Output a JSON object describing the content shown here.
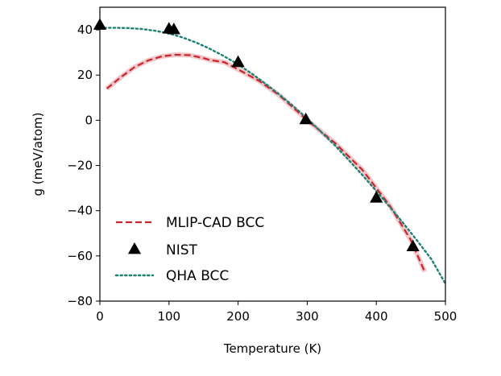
{
  "chart_data": {
    "type": "line",
    "xlabel": "Temperature (K)",
    "ylabel": "g (meV/atom)",
    "xlim": [
      0,
      500
    ],
    "ylim": [
      -80,
      50
    ],
    "xticks": [
      0,
      100,
      200,
      300,
      400,
      500
    ],
    "yticks": [
      -80,
      -60,
      -40,
      -20,
      0,
      20,
      40
    ],
    "xtick_labels": [
      "0",
      "100",
      "200",
      "300",
      "400",
      "500"
    ],
    "ytick_labels": [
      "−80",
      "−60",
      "−40",
      "−20",
      "0",
      "20",
      "40"
    ],
    "grid": false,
    "legend_position": "lower-left",
    "series": [
      {
        "name": "MLIP-CAD BCC",
        "style": "dashed",
        "color": "#c8252c",
        "x": [
          10,
          30,
          50,
          70,
          90,
          110,
          130,
          150,
          160,
          180,
          200,
          230,
          260,
          300,
          340,
          380,
          420,
          450,
          470
        ],
        "y": [
          14,
          19,
          23.5,
          26.5,
          28.3,
          29,
          28.8,
          27.5,
          26.6,
          25.7,
          22.5,
          17.5,
          11,
          0,
          -10,
          -22,
          -38,
          -53,
          -67
        ]
      },
      {
        "name": "NIST",
        "style": "markers",
        "marker": "triangle",
        "color": "#000000",
        "x": [
          0,
          100,
          107,
          200,
          298,
          400,
          453
        ],
        "y": [
          42,
          40.3,
          40,
          25.5,
          0.2,
          -34.5,
          -56
        ]
      },
      {
        "name": "QHA BCC",
        "style": "dotted",
        "color": "#1f7f73",
        "x": [
          0,
          20,
          40,
          60,
          80,
          100,
          120,
          140,
          160,
          180,
          200,
          220,
          240,
          260,
          280,
          300,
          320,
          340,
          360,
          380,
          400,
          420,
          440,
          460,
          480,
          500
        ],
        "y": [
          40.9,
          40.9,
          40.8,
          40.4,
          39.6,
          38.4,
          36.6,
          34.3,
          31.5,
          28.3,
          24.7,
          20.6,
          16.1,
          11.3,
          6.2,
          0.7,
          -5.1,
          -11.1,
          -17.6,
          -24.3,
          -31.3,
          -38.5,
          -45.9,
          -53.6,
          -61.6,
          -72.3
        ]
      }
    ]
  }
}
